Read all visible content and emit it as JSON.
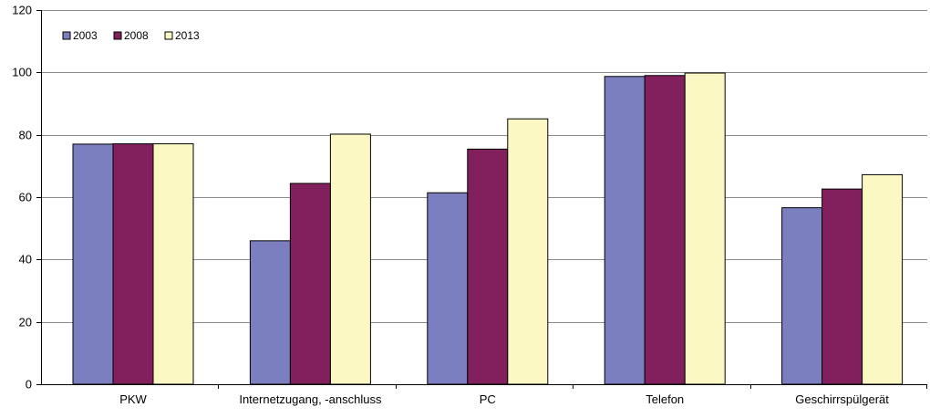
{
  "chart_data": {
    "type": "bar",
    "title": "",
    "xlabel": "",
    "ylabel": "",
    "ylim": [
      0,
      120
    ],
    "yticks": [
      0,
      20,
      40,
      60,
      80,
      100,
      120
    ],
    "grid": true,
    "legend_position": "top-left",
    "categories": [
      "PKW",
      "Internetzugang, -anschluss",
      "PC",
      "Telefon",
      "Geschirrspülgerät"
    ],
    "series": [
      {
        "name": "2003",
        "color": "#7b7fc0",
        "values": [
          77.0,
          46.0,
          61.4,
          98.7,
          56.6
        ]
      },
      {
        "name": "2008",
        "color": "#82205e",
        "values": [
          77.1,
          64.4,
          75.4,
          99.0,
          62.6
        ]
      },
      {
        "name": "2013",
        "color": "#fbf8c4",
        "values": [
          77.1,
          80.2,
          85.1,
          99.8,
          67.2
        ]
      }
    ]
  }
}
